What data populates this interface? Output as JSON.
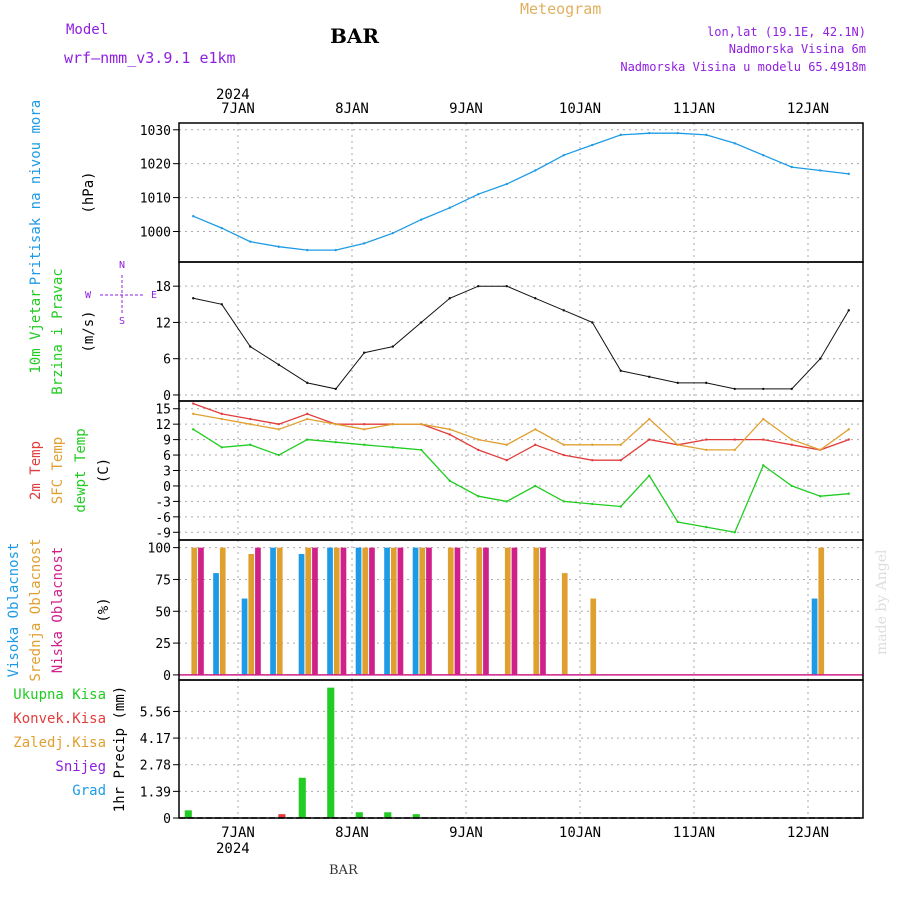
{
  "header": {
    "model_label": "Model",
    "model_name": "wrf—nmm_v3.9.1  e1km",
    "station": "BAR",
    "product": "Meteogram",
    "coords": "lon,lat (19.1E, 42.1N)",
    "elevation": "Nadmorska Visina 6m",
    "model_elevation": "Nadmorska Visina u modelu 65.4918m",
    "footer_station": "BAR",
    "watermark": "made by Angel"
  },
  "colors": {
    "pressure": "#1E9BE6",
    "temp2m": "#E23C3C",
    "sfc_temp": "#E0A030",
    "dewpt": "#22CC22",
    "cloud_high": "#1E9BE6",
    "cloud_mid": "#E0A030",
    "cloud_low": "#D0208A",
    "precip_total": "#22CC22",
    "precip_conv": "#E23C3C",
    "wind_purple": "#9020E0",
    "grid": "#aaaaaa"
  },
  "chart_data": [
    {
      "type": "line",
      "title": "",
      "ylabel": [
        "Pritisak na nivou mora",
        "(hPa)"
      ],
      "x": [
        "6JAN 18",
        "7JAN 00",
        "7JAN 06",
        "7JAN 12",
        "7JAN 18",
        "8JAN 00",
        "8JAN 06",
        "8JAN 12",
        "8JAN 18",
        "9JAN 00",
        "9JAN 06",
        "9JAN 12",
        "9JAN 18",
        "10JAN 00",
        "10JAN 06",
        "10JAN 12",
        "10JAN 18",
        "11JAN 00",
        "11JAN 06",
        "11JAN 12",
        "11JAN 18",
        "12JAN 00",
        "12JAN 06",
        "12JAN 12"
      ],
      "series": [
        {
          "values": [
            1004.5,
            1001,
            997,
            995.5,
            994.5,
            994.5,
            996.5,
            999.5,
            1003.5,
            1007,
            1011,
            1014,
            1018,
            1022.5,
            1025.5,
            1028.5,
            1029,
            1029,
            1028.5,
            1026,
            1022.5,
            1019,
            1018,
            1017
          ]
        }
      ],
      "ylim": [
        991,
        1032
      ],
      "yticks": [
        "1000",
        "1010",
        "1020",
        "1030"
      ]
    },
    {
      "type": "line",
      "title": "",
      "ylabel": [
        "10m Vjetar",
        "Brzina i Pravac",
        "(m/s)"
      ],
      "direction_key": [
        "W",
        "E",
        "N",
        "S"
      ],
      "x": [
        "6JAN 18",
        "7JAN 00",
        "7JAN 06",
        "7JAN 12",
        "7JAN 18",
        "8JAN 00",
        "8JAN 06",
        "8JAN 12",
        "8JAN 18",
        "9JAN 00",
        "9JAN 06",
        "9JAN 12",
        "9JAN 18",
        "10JAN 00",
        "10JAN 06",
        "10JAN 12",
        "10JAN 18",
        "11JAN 00",
        "11JAN 06",
        "11JAN 12",
        "11JAN 18",
        "12JAN 00",
        "12JAN 06",
        "12JAN 12"
      ],
      "series": [
        {
          "values": [
            16,
            15,
            8,
            5,
            2,
            1,
            7,
            8,
            12,
            16,
            18,
            18,
            16,
            14,
            12,
            4,
            3,
            2,
            2,
            1,
            1,
            1,
            6,
            14
          ]
        }
      ],
      "ylim": [
        -1,
        22
      ],
      "yticks": [
        "0",
        "6",
        "12",
        "18"
      ]
    },
    {
      "type": "line",
      "title": "",
      "ylabel": [
        "2m Temp",
        "SFC Temp",
        "dewpt Temp",
        "(C)"
      ],
      "x": [
        "6JAN 18",
        "7JAN 00",
        "7JAN 06",
        "7JAN 12",
        "7JAN 18",
        "8JAN 00",
        "8JAN 06",
        "8JAN 12",
        "8JAN 18",
        "9JAN 00",
        "9JAN 06",
        "9JAN 12",
        "9JAN 18",
        "10JAN 00",
        "10JAN 06",
        "10JAN 12",
        "10JAN 18",
        "11JAN 00",
        "11JAN 06",
        "11JAN 12",
        "11JAN 18",
        "12JAN 00",
        "12JAN 06",
        "12JAN 12"
      ],
      "series": [
        {
          "name": "2m Temp",
          "values": [
            16,
            14,
            13,
            12,
            14,
            12,
            12,
            12,
            12,
            10,
            7,
            5,
            8,
            6,
            5,
            5,
            9,
            8,
            9,
            9,
            9,
            8,
            7,
            9
          ]
        },
        {
          "name": "SFC Temp",
          "values": [
            14,
            13,
            12,
            11,
            13,
            12,
            11,
            12,
            12,
            11,
            9,
            8,
            11,
            8,
            8,
            8,
            13,
            8,
            7,
            7,
            13,
            9,
            7,
            11
          ]
        },
        {
          "name": "dewpt Temp",
          "values": [
            11,
            7.5,
            8,
            6,
            9,
            8.5,
            8,
            7.5,
            7,
            1,
            -2,
            -3,
            0,
            -3,
            -3.5,
            -4,
            2,
            -7,
            -8,
            -9,
            4,
            0,
            -2,
            -1.5
          ]
        }
      ],
      "ylim": [
        -10.5,
        16.5
      ],
      "yticks": [
        "-9",
        "-6",
        "-3",
        "0",
        "3",
        "6",
        "9",
        "12",
        "15"
      ]
    },
    {
      "type": "bar",
      "title": "",
      "ylabel": [
        "Visoka Oblacnost",
        "Srednja Oblacnost",
        "Niska Oblacnost",
        "(%)"
      ],
      "x": [
        "6JAN 18",
        "7JAN 00",
        "7JAN 06",
        "7JAN 12",
        "7JAN 18",
        "8JAN 00",
        "8JAN 06",
        "8JAN 12",
        "8JAN 18",
        "9JAN 00",
        "9JAN 06",
        "9JAN 12",
        "9JAN 18",
        "10JAN 00",
        "10JAN 06",
        "10JAN 12",
        "10JAN 18",
        "11JAN 00",
        "11JAN 06",
        "11JAN 12",
        "11JAN 18",
        "12JAN 00",
        "12JAN 06",
        "12JAN 12"
      ],
      "series": [
        {
          "name": "Visoka Oblacnost",
          "values": [
            0,
            80,
            60,
            100,
            95,
            100,
            100,
            100,
            100,
            0,
            0,
            0,
            0,
            0,
            0,
            0,
            0,
            0,
            0,
            0,
            0,
            0,
            60,
            0
          ]
        },
        {
          "name": "Srednja Oblacnost",
          "values": [
            100,
            100,
            95,
            100,
            100,
            100,
            100,
            100,
            100,
            100,
            100,
            100,
            100,
            80,
            60,
            0,
            0,
            0,
            0,
            0,
            0,
            0,
            100,
            0
          ]
        },
        {
          "name": "Niska Oblacnost",
          "values": [
            100,
            0,
            100,
            0,
            100,
            100,
            100,
            100,
            100,
            100,
            100,
            100,
            100,
            0,
            0,
            0,
            0,
            0,
            0,
            0,
            0,
            0,
            0,
            0
          ]
        }
      ],
      "ylim": [
        -4,
        106
      ],
      "yticks": [
        "0",
        "25",
        "50",
        "75",
        "100"
      ]
    },
    {
      "type": "bar",
      "title": "",
      "ylabel": [
        "1hr Precip (mm)"
      ],
      "legend": [
        "Ukupna Kisa",
        "Konvek.Kisa",
        "Zaledj.Kisa",
        "Snijeg",
        "Grad"
      ],
      "x": [
        "6JAN 18",
        "7JAN 00",
        "7JAN 06",
        "7JAN 12",
        "7JAN 18",
        "8JAN 00",
        "8JAN 06",
        "8JAN 12",
        "8JAN 18",
        "9JAN 00",
        "9JAN 06",
        "9JAN 12",
        "9JAN 18",
        "10JAN 00",
        "10JAN 06",
        "10JAN 12",
        "10JAN 18",
        "11JAN 00",
        "11JAN 06",
        "11JAN 12",
        "11JAN 18",
        "12JAN 00",
        "12JAN 06",
        "12JAN 12"
      ],
      "series": [
        {
          "name": "Ukupna Kisa",
          "values": [
            0.4,
            0,
            0,
            0,
            2.1,
            6.8,
            0.3,
            0.3,
            0.2,
            0,
            0,
            0,
            0,
            0,
            0,
            0,
            0,
            0,
            0,
            0,
            0,
            0,
            0,
            0
          ]
        },
        {
          "name": "Konvek.Kisa",
          "values": [
            0,
            0,
            0,
            0.2,
            0,
            0,
            0,
            0,
            0,
            0,
            0,
            0,
            0,
            0,
            0,
            0,
            0,
            0,
            0,
            0,
            0,
            0,
            0,
            0
          ]
        }
      ],
      "ylim": [
        0,
        7.2
      ],
      "yticks": [
        "0",
        "1.39",
        "2.78",
        "4.17",
        "5.56"
      ]
    }
  ],
  "x_axis": {
    "year": "2024",
    "day_labels": [
      "7JAN",
      "8JAN",
      "9JAN",
      "10JAN",
      "11JAN",
      "12JAN"
    ]
  }
}
